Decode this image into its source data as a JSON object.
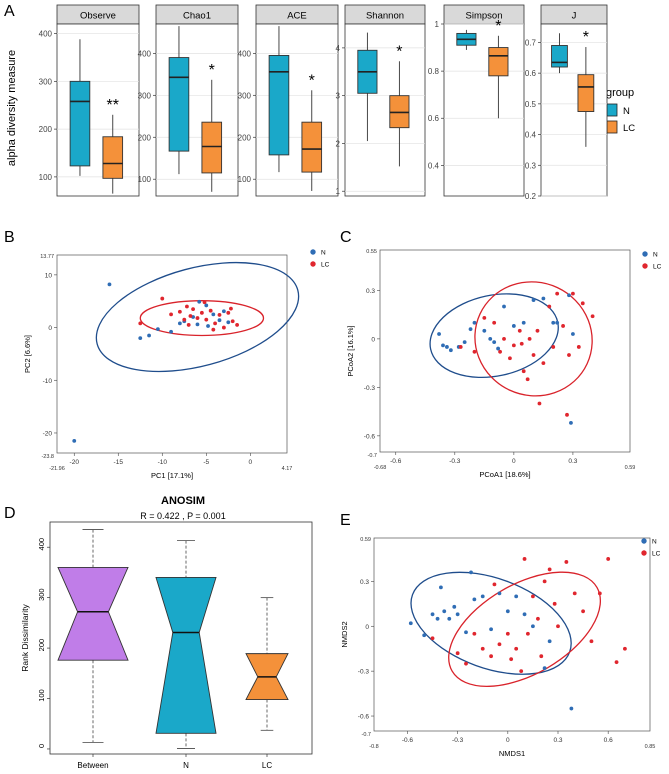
{
  "colors": {
    "N": "#1aa8c9",
    "LC": "#f4913a",
    "N_dot": "#2f6db5",
    "LC_dot": "#e0262e",
    "N_ellipse": "#1f4d8c",
    "LC_ellipse": "#d9232b",
    "between": "#c07de8",
    "facet_strip": "#d9d9d9",
    "panel_bg": "#ebebeb"
  },
  "panel_letters": {
    "A": "A",
    "B": "B",
    "C": "C",
    "D": "D",
    "E": "E"
  },
  "legend": {
    "title": "group",
    "items": [
      "N",
      "LC"
    ]
  },
  "chart_data": [
    {
      "id": "A",
      "type": "box",
      "ylabel": "alpha diversity measure",
      "facets": [
        {
          "label": "Observe",
          "ylim": [
            60,
            420
          ],
          "ticks": [
            100,
            200,
            300,
            400
          ],
          "N": {
            "min": 102,
            "q1": 123,
            "median": 258,
            "q3": 300,
            "max": 388
          },
          "LC": {
            "min": 65,
            "q1": 97,
            "median": 128,
            "q3": 184,
            "max": 230
          },
          "sig": "**"
        },
        {
          "label": "Chao1",
          "ylim": [
            60,
            470
          ],
          "ticks": [
            100,
            200,
            300,
            400
          ],
          "N": {
            "min": 112,
            "q1": 167,
            "median": 343,
            "q3": 390,
            "max": 465
          },
          "LC": {
            "min": 70,
            "q1": 115,
            "median": 178,
            "q3": 236,
            "max": 337
          },
          "sig": "*"
        },
        {
          "label": "ACE",
          "ylim": [
            60,
            470
          ],
          "ticks": [
            100,
            200,
            300,
            400
          ],
          "N": {
            "min": 117,
            "q1": 158,
            "median": 356,
            "q3": 395,
            "max": 465
          },
          "LC": {
            "min": 72,
            "q1": 117,
            "median": 172,
            "q3": 236,
            "max": 312
          },
          "sig": "*"
        },
        {
          "label": "Shannon",
          "ylim": [
            0.9,
            4.5
          ],
          "ticks": [
            1,
            2,
            3,
            4
          ],
          "N": {
            "min": 2.05,
            "q1": 3.05,
            "median": 3.5,
            "q3": 3.95,
            "max": 4.32
          },
          "LC": {
            "min": 1.52,
            "q1": 2.33,
            "median": 2.65,
            "q3": 3.0,
            "max": 3.72
          },
          "sig": "*"
        },
        {
          "label": "Simpson",
          "ylim": [
            0.27,
            1.0
          ],
          "ticks": [
            0.4,
            0.6,
            0.8,
            1.0
          ],
          "N": {
            "min": 0.89,
            "q1": 0.91,
            "median": 0.935,
            "q3": 0.96,
            "max": 0.975
          },
          "LC": {
            "min": 0.6,
            "q1": 0.78,
            "median": 0.865,
            "q3": 0.9,
            "max": 0.95
          },
          "sig": "*"
        },
        {
          "label": "J",
          "ylim": [
            0.2,
            0.76
          ],
          "ticks": [
            0.2,
            0.3,
            0.4,
            0.5,
            0.6,
            0.7
          ],
          "N": {
            "min": 0.6,
            "q1": 0.62,
            "median": 0.635,
            "q3": 0.69,
            "max": 0.73
          },
          "LC": {
            "min": 0.36,
            "q1": 0.475,
            "median": 0.555,
            "q3": 0.595,
            "max": 0.685
          },
          "sig": "*"
        }
      ]
    },
    {
      "id": "B",
      "type": "scatter",
      "xlabel": "PC1 [17.1%]",
      "ylabel": "PC2 [6.6%]",
      "xlim": [
        -21.96,
        4.17
      ],
      "ylim": [
        -23.8,
        13.77
      ],
      "xticks": [
        -20,
        -15,
        -10,
        -5,
        0
      ],
      "yticks": [
        -20,
        -10,
        0,
        10
      ],
      "xtick_labels": [
        "-20",
        "-15",
        "-10",
        "-5",
        "0"
      ],
      "ytick_labels": [
        "-20",
        "-10",
        "0",
        "10"
      ],
      "corner_labels": {
        "xmin": "-21.96",
        "xmax": "4.17",
        "ymin": "-23.8",
        "ymax": "13.77"
      },
      "ellipses": [
        {
          "group": "N",
          "cx": -6,
          "cy": 2,
          "rx": 11.8,
          "ry": 9.3,
          "angle": 15
        },
        {
          "group": "LC",
          "cx": -5.5,
          "cy": 1.8,
          "rx": 7,
          "ry": 3.3,
          "angle": 0
        }
      ],
      "points": {
        "N": [
          [
            -16,
            8.2
          ],
          [
            -20,
            -21.5
          ],
          [
            -12.5,
            -2
          ],
          [
            -11.5,
            -1.5
          ],
          [
            -10.5,
            -0.3
          ],
          [
            -8,
            0.8
          ],
          [
            -7.5,
            1.2
          ],
          [
            -6,
            0.6
          ],
          [
            -5,
            4.2
          ],
          [
            -4.2,
            2.5
          ],
          [
            -3.5,
            1.4
          ],
          [
            -4.8,
            0.3
          ],
          [
            -2.5,
            1
          ],
          [
            -6.5,
            2
          ],
          [
            -5.8,
            4.9
          ],
          [
            -9,
            -0.8
          ],
          [
            -3,
            3.1
          ]
        ],
        "LC": [
          [
            -10,
            5.5
          ],
          [
            -9,
            2.5
          ],
          [
            -8,
            3
          ],
          [
            -7.5,
            1.5
          ],
          [
            -7,
            0.5
          ],
          [
            -6.5,
            3.5
          ],
          [
            -6,
            1.8
          ],
          [
            -5.5,
            2.8
          ],
          [
            -5,
            1.5
          ],
          [
            -4.5,
            3.2
          ],
          [
            -4,
            0.8
          ],
          [
            -3.5,
            2.4
          ],
          [
            -3,
            0
          ],
          [
            -2.5,
            2.8
          ],
          [
            -2,
            1.2
          ],
          [
            -1.5,
            0.5
          ],
          [
            -5.2,
            4.8
          ],
          [
            -6.8,
            2.2
          ],
          [
            -12.5,
            0.8
          ],
          [
            -4.2,
            -0.4
          ],
          [
            -2.2,
            3.6
          ],
          [
            -7.2,
            4
          ]
        ]
      }
    },
    {
      "id": "C",
      "type": "scatter",
      "xlabel": "PCoA1 [18.6%]",
      "ylabel": "PCoA2 [16.1%]",
      "xlim": [
        -0.68,
        0.59
      ],
      "ylim": [
        -0.7,
        0.55
      ],
      "xticks": [
        -0.6,
        -0.3,
        0,
        0.3
      ],
      "yticks": [
        -0.6,
        -0.3,
        0,
        0.3
      ],
      "xtick_labels": [
        "-0.6",
        "-0.3",
        "0",
        "0.3"
      ],
      "ytick_labels": [
        "-0.6",
        "-0.3",
        "0",
        "0.3"
      ],
      "corner_labels": {
        "xmin": "-0.68",
        "xmax": "0.59",
        "ymin": "-0.7",
        "ymax": "0.55"
      },
      "ellipses": [
        {
          "group": "N",
          "cx": -0.1,
          "cy": 0.02,
          "rx": 0.33,
          "ry": 0.25,
          "angle": 12
        },
        {
          "group": "LC",
          "cx": 0.1,
          "cy": 0.0,
          "rx": 0.3,
          "ry": 0.35,
          "angle": -25
        }
      ],
      "points": {
        "N": [
          [
            -0.38,
            0.03
          ],
          [
            -0.36,
            -0.04
          ],
          [
            -0.34,
            -0.05
          ],
          [
            -0.32,
            -0.07
          ],
          [
            -0.28,
            -0.05
          ],
          [
            -0.25,
            -0.02
          ],
          [
            -0.22,
            0.06
          ],
          [
            -0.2,
            0.1
          ],
          [
            -0.15,
            0.05
          ],
          [
            -0.12,
            0.0
          ],
          [
            -0.1,
            -0.02
          ],
          [
            -0.08,
            -0.06
          ],
          [
            -0.05,
            0.2
          ],
          [
            0.0,
            0.08
          ],
          [
            0.05,
            0.1
          ],
          [
            0.1,
            0.24
          ],
          [
            0.15,
            0.25
          ],
          [
            0.2,
            0.1
          ],
          [
            0.22,
            0.1
          ],
          [
            0.3,
            0.03
          ],
          [
            0.28,
            0.27
          ],
          [
            0.29,
            -0.52
          ]
        ],
        "LC": [
          [
            -0.27,
            -0.05
          ],
          [
            -0.2,
            -0.08
          ],
          [
            -0.15,
            0.13
          ],
          [
            -0.1,
            0.1
          ],
          [
            -0.05,
            0.0
          ],
          [
            -0.02,
            -0.12
          ],
          [
            0.0,
            -0.04
          ],
          [
            0.03,
            0.05
          ],
          [
            0.05,
            -0.2
          ],
          [
            0.07,
            -0.25
          ],
          [
            0.08,
            0.0
          ],
          [
            0.1,
            -0.1
          ],
          [
            0.12,
            0.05
          ],
          [
            0.15,
            -0.15
          ],
          [
            0.18,
            0.2
          ],
          [
            0.2,
            -0.05
          ],
          [
            0.22,
            0.28
          ],
          [
            0.25,
            0.08
          ],
          [
            0.28,
            -0.1
          ],
          [
            0.3,
            0.28
          ],
          [
            0.33,
            -0.05
          ],
          [
            0.35,
            0.22
          ],
          [
            0.4,
            0.14
          ],
          [
            0.13,
            -0.4
          ],
          [
            0.27,
            -0.47
          ],
          [
            0.04,
            -0.03
          ],
          [
            -0.07,
            -0.08
          ]
        ]
      }
    },
    {
      "id": "D",
      "type": "box",
      "title": "ANOSIM",
      "subtitle": "R = 0.422 , P = 0.001",
      "ylabel": "Rank Dissimilarity",
      "categories": [
        "Between",
        "N",
        "LC"
      ],
      "ylim": [
        -10,
        450
      ],
      "ticks": [
        0,
        100,
        200,
        300,
        400
      ],
      "boxes": [
        {
          "name": "Between",
          "min": 13,
          "q1": 176,
          "median": 272,
          "q3": 360,
          "max": 435
        },
        {
          "name": "N",
          "min": 1,
          "q1": 31,
          "median": 231,
          "q3": 340,
          "max": 413
        },
        {
          "name": "LC",
          "min": 37,
          "q1": 98,
          "median": 143,
          "q3": 189,
          "max": 300
        }
      ]
    },
    {
      "id": "E",
      "type": "scatter",
      "xlabel": "NMDS1",
      "ylabel": "NMDS2",
      "xlim": [
        -0.8,
        0.85
      ],
      "ylim": [
        -0.7,
        0.59
      ],
      "xticks": [
        -0.6,
        -0.3,
        0,
        0.3,
        0.6
      ],
      "yticks": [
        -0.6,
        -0.3,
        0,
        0.3
      ],
      "xtick_labels": [
        "-0.6",
        "-0.3",
        "0",
        "0.3",
        "0.6"
      ],
      "ytick_labels": [
        "-0.6",
        "-0.3",
        "0",
        "0.3"
      ],
      "corner_labels": {
        "xmin": "-0.8",
        "xmax": "0.85",
        "ymin": "-0.7",
        "ymax": "0.59"
      },
      "ellipses": [
        {
          "group": "N",
          "cx": -0.1,
          "cy": 0.02,
          "rx": 0.5,
          "ry": 0.3,
          "angle": -20
        },
        {
          "group": "LC",
          "cx": 0.1,
          "cy": -0.02,
          "rx": 0.5,
          "ry": 0.3,
          "angle": 30
        }
      ],
      "points": {
        "N": [
          [
            -0.58,
            0.02
          ],
          [
            -0.5,
            -0.06
          ],
          [
            -0.45,
            0.08
          ],
          [
            -0.42,
            0.05
          ],
          [
            -0.4,
            0.26
          ],
          [
            -0.38,
            0.1
          ],
          [
            -0.35,
            0.05
          ],
          [
            -0.32,
            0.13
          ],
          [
            -0.3,
            0.08
          ],
          [
            -0.25,
            -0.04
          ],
          [
            -0.22,
            0.36
          ],
          [
            -0.2,
            0.18
          ],
          [
            -0.15,
            0.2
          ],
          [
            -0.1,
            -0.02
          ],
          [
            -0.05,
            0.22
          ],
          [
            0.0,
            0.1
          ],
          [
            0.05,
            0.2
          ],
          [
            0.1,
            0.08
          ],
          [
            0.15,
            0.0
          ],
          [
            0.25,
            -0.1
          ],
          [
            0.22,
            -0.28
          ],
          [
            0.38,
            -0.55
          ]
        ],
        "LC": [
          [
            -0.45,
            -0.08
          ],
          [
            -0.3,
            -0.18
          ],
          [
            -0.25,
            -0.25
          ],
          [
            -0.2,
            -0.05
          ],
          [
            -0.15,
            -0.15
          ],
          [
            -0.1,
            -0.2
          ],
          [
            -0.05,
            -0.12
          ],
          [
            0.0,
            -0.05
          ],
          [
            0.02,
            -0.22
          ],
          [
            0.05,
            -0.15
          ],
          [
            0.08,
            -0.3
          ],
          [
            0.1,
            0.45
          ],
          [
            0.12,
            -0.05
          ],
          [
            0.15,
            0.2
          ],
          [
            0.18,
            0.05
          ],
          [
            0.2,
            -0.2
          ],
          [
            0.25,
            0.38
          ],
          [
            0.28,
            0.15
          ],
          [
            0.3,
            0.0
          ],
          [
            0.35,
            0.43
          ],
          [
            0.4,
            0.22
          ],
          [
            0.45,
            0.1
          ],
          [
            0.5,
            -0.1
          ],
          [
            0.55,
            0.22
          ],
          [
            0.6,
            0.45
          ],
          [
            0.65,
            -0.24
          ],
          [
            0.7,
            -0.15
          ],
          [
            -0.08,
            0.28
          ],
          [
            0.22,
            0.3
          ]
        ]
      }
    }
  ]
}
